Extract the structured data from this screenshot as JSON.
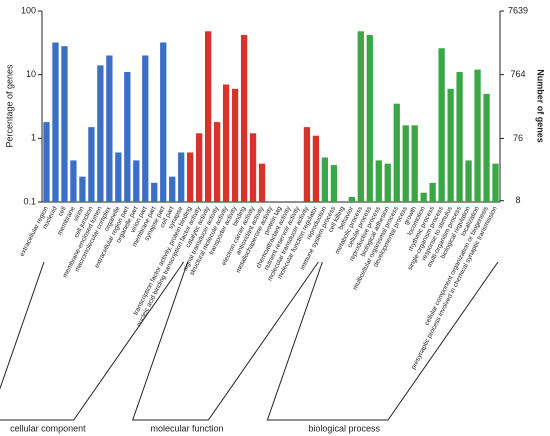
{
  "chart_data": {
    "type": "bar",
    "log_scale": true,
    "ylabel": "Percentage of genes",
    "y2label": "Number of genes",
    "ylim": [
      0.1,
      100
    ],
    "yticks": [
      0.1,
      1,
      10,
      100
    ],
    "y2lim": [
      7.639,
      7639
    ],
    "y2ticks": [
      8,
      76,
      764,
      7639
    ],
    "groups": [
      {
        "name": "cellular component",
        "color": "#3b6fc6",
        "categories": [
          "extracellular region",
          "nucleoid",
          "cell",
          "membrane",
          "virion",
          "cell junction",
          "membrane-enclosed lumen",
          "macromolecular complex",
          "organelle",
          "extracellular region part",
          "organelle part",
          "virion part",
          "membrane part",
          "synapse part",
          "cell part",
          "synapse"
        ],
        "values": [
          1.8,
          32,
          28,
          0.45,
          0.25,
          1.5,
          14,
          20,
          0.6,
          11,
          0.45,
          20,
          0.2,
          32,
          0.25,
          0.6
        ]
      },
      {
        "name": "molecular function",
        "color": "#d8322c",
        "categories": [
          "transcription factor activity, protein binding",
          "nucleic acid binding transcription factor activity",
          "catalytic activity",
          "signal transducer activity",
          "structural molecule activity",
          "transporter activity",
          "binding",
          "electron carrier activity",
          "antioxidant activity",
          "metallochaperone activity",
          "protein tag",
          "chemoattractant activity",
          "nutrient reservoir activity",
          "molecular transducer activity",
          "molecular function regulator"
        ],
        "values": [
          0.6,
          1.2,
          48,
          1.8,
          7,
          6,
          42,
          1.2,
          0.4,
          null,
          null,
          null,
          null,
          1.5,
          1.1
        ]
      },
      {
        "name": "biological process",
        "color": "#3aa646",
        "categories": [
          "reproduction",
          "immune system process",
          "cell killing",
          "behavior",
          "metabolic process",
          "cellular process",
          "reproductive process",
          "biological adhesion",
          "multicellular organismal process",
          "developmental process",
          "growth",
          "locomotion",
          "rhythmic process",
          "single-organism process",
          "response to stimulus",
          "multi-organism process",
          "biological regulation",
          "localization",
          "cellular component organization or biogenesis",
          "presynaptic process involved in chemical synaptic transmission"
        ],
        "values": [
          0.5,
          0.38,
          null,
          0.12,
          48,
          42,
          0.45,
          0.4,
          3.5,
          1.6,
          1.6,
          0.14,
          0.2,
          26,
          6,
          11,
          0.45,
          12,
          5,
          0.4
        ]
      }
    ]
  }
}
